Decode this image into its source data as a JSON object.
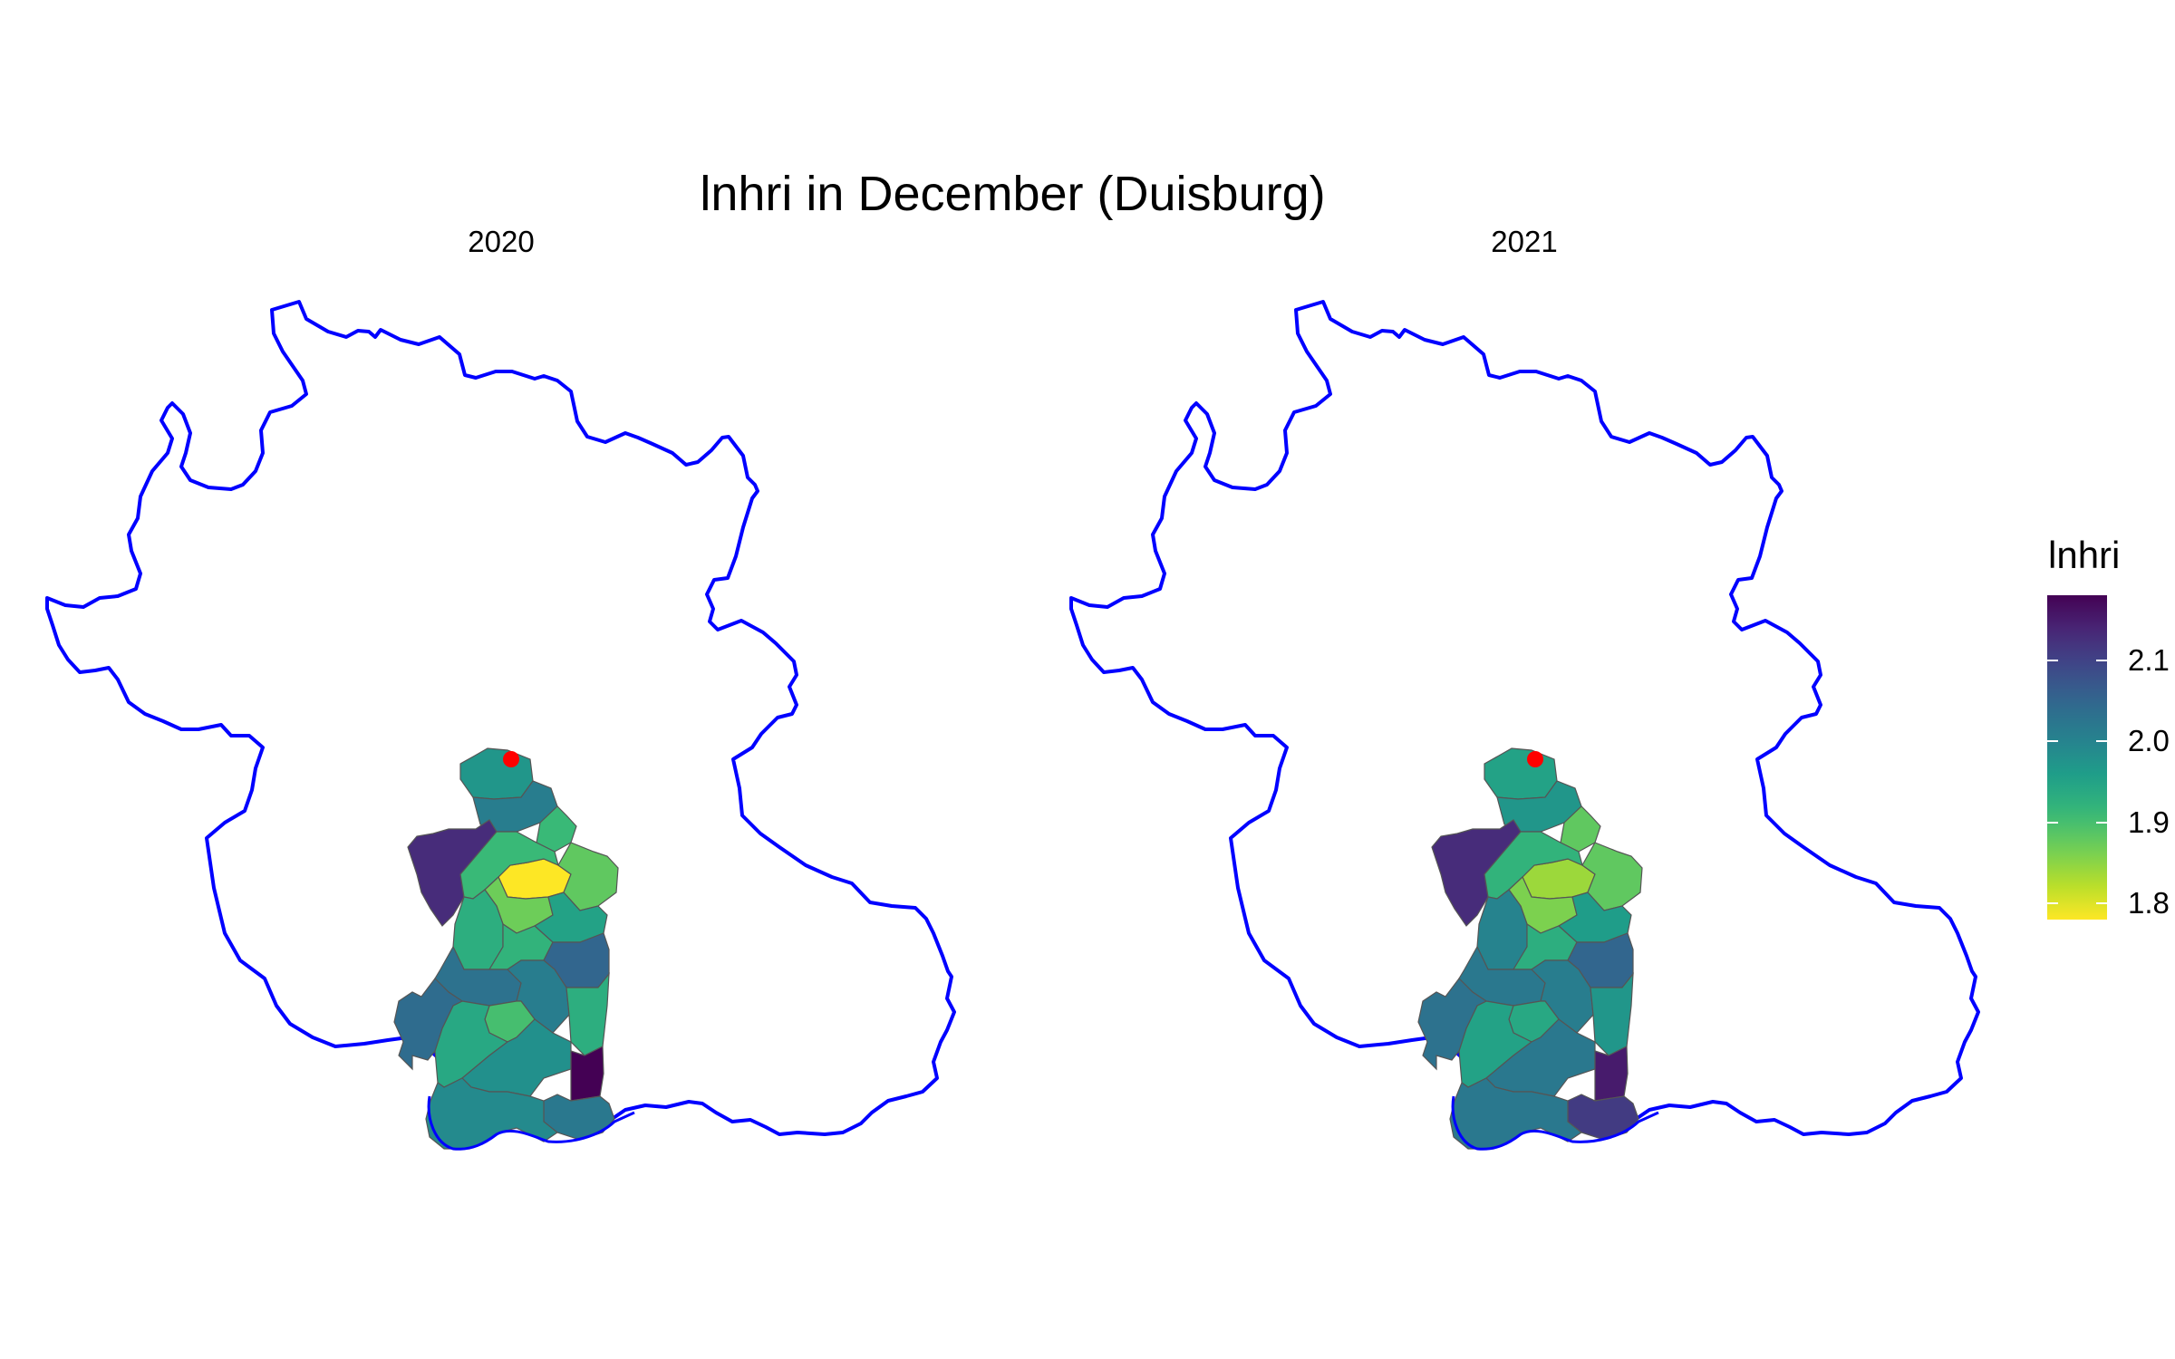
{
  "title": "lnhri in December (Duisburg)",
  "panels": [
    {
      "label": "2020"
    },
    {
      "label": "2021"
    }
  ],
  "legend": {
    "title": "lnhri",
    "ticks": [
      "2.1",
      "2.0",
      "1.9",
      "1.8"
    ],
    "palette": "viridis-reversed"
  },
  "colors": {
    "boundary": "#0000ff",
    "marker": "#ff0000",
    "district_edge": "#555555"
  },
  "chart_data": {
    "type": "choropleth",
    "variable": "lnhri",
    "month": "December",
    "city": "Duisburg",
    "color_range": [
      1.78,
      2.18
    ],
    "legend_ticks": [
      1.8,
      1.9,
      2.0,
      2.1
    ],
    "facets": [
      {
        "year": "2020",
        "district_values": [
          1.97,
          2.01,
          1.91,
          2.13,
          1.78,
          1.88,
          1.91,
          1.87,
          1.95,
          1.93,
          1.92,
          2.05,
          2.03,
          2.01,
          1.9,
          1.93,
          1.94,
          1.98,
          2.04,
          2.18,
          2.02,
          1.99
        ]
      },
      {
        "year": "2021",
        "district_values": [
          1.95,
          1.97,
          1.88,
          2.13,
          1.84,
          1.88,
          1.92,
          1.86,
          1.96,
          2.0,
          1.93,
          2.05,
          2.02,
          2.01,
          1.94,
          1.97,
          1.95,
          2.02,
          2.03,
          2.15,
          2.11,
          2.02
        ]
      }
    ]
  }
}
